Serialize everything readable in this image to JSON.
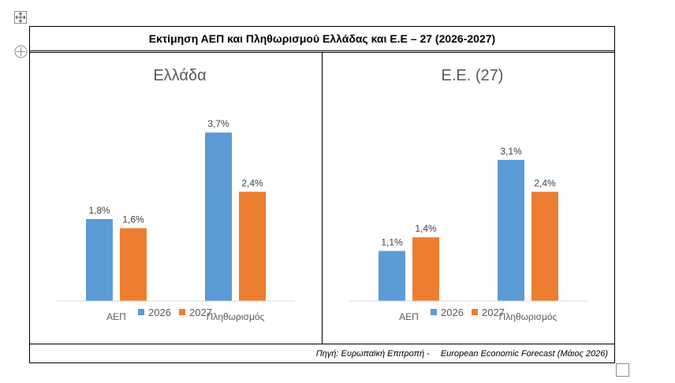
{
  "title": "Εκτίμηση ΑΕΠ και Πληθωρισμού Ελλάδας και Ε.Ε – 27 (2026-2027)",
  "source": {
    "prefix": "Πηγή: Ευρωπαϊκή Επιτροπή -",
    "name": "European Economic Forecast (Μάιος 2026)"
  },
  "colors": {
    "series_2026": "#5b9bd5",
    "series_2027": "#ed7d31",
    "axis": "#d9d9d9",
    "title_text": "#595959"
  },
  "chart_data": [
    {
      "type": "bar",
      "title": "Ελλάδα",
      "categories": [
        "ΑΕΠ",
        "Πληθωρισμός"
      ],
      "series": [
        {
          "name": "2026",
          "values": [
            1.8,
            3.7
          ],
          "labels": [
            "1,8%",
            "3,7%"
          ]
        },
        {
          "name": "2027",
          "values": [
            1.6,
            2.4
          ],
          "labels": [
            "1,6%",
            "2,4%"
          ]
        }
      ],
      "ylim": [
        0,
        4.5
      ],
      "grid": false,
      "legend": "bottom"
    },
    {
      "type": "bar",
      "title": "Ε.Ε. (27)",
      "categories": [
        "ΑΕΠ",
        "Πληθωρισμός"
      ],
      "series": [
        {
          "name": "2026",
          "values": [
            1.1,
            3.1
          ],
          "labels": [
            "1,1%",
            "3,1%"
          ]
        },
        {
          "name": "2027",
          "values": [
            1.4,
            2.4
          ],
          "labels": [
            "1,4%",
            "2,4%"
          ]
        }
      ],
      "ylim": [
        0,
        4.5
      ],
      "grid": false,
      "legend": "bottom"
    }
  ]
}
